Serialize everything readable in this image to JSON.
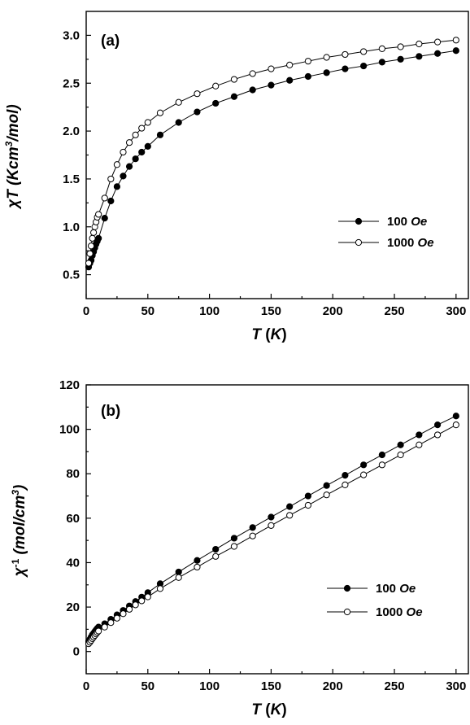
{
  "chart_data": [
    {
      "type": "scatter",
      "panel_label": "(a)",
      "xlabel": "T (K)",
      "ylabel": "χT (Kcm3/mol)",
      "xlim": [
        0,
        310
      ],
      "ylim": [
        0.25,
        3.25
      ],
      "xticks": [
        0,
        50,
        100,
        150,
        200,
        250,
        300
      ],
      "yticks": [
        0.5,
        1.0,
        1.5,
        2.0,
        2.5,
        3.0
      ],
      "yticks_labels": [
        "0.5",
        "1.0",
        "1.5",
        "2.0",
        "2.5",
        "3.0"
      ],
      "legend_position": "center-right",
      "series": [
        {
          "name": "100 Oe",
          "marker": "filled-circle",
          "x": [
            2,
            3,
            4,
            5,
            6,
            7,
            8,
            9,
            10,
            15,
            20,
            25,
            30,
            35,
            40,
            45,
            50,
            60,
            75,
            90,
            105,
            120,
            135,
            150,
            165,
            180,
            195,
            210,
            225,
            240,
            255,
            270,
            285,
            300
          ],
          "y": [
            0.58,
            0.62,
            0.65,
            0.7,
            0.74,
            0.78,
            0.82,
            0.85,
            0.88,
            1.09,
            1.27,
            1.42,
            1.53,
            1.63,
            1.71,
            1.78,
            1.84,
            1.96,
            2.09,
            2.2,
            2.29,
            2.36,
            2.43,
            2.48,
            2.53,
            2.57,
            2.61,
            2.65,
            2.68,
            2.72,
            2.75,
            2.78,
            2.81,
            2.84
          ]
        },
        {
          "name": "1000 Oe",
          "marker": "open-circle",
          "x": [
            2,
            3,
            4,
            5,
            6,
            7,
            8,
            9,
            10,
            15,
            20,
            25,
            30,
            35,
            40,
            45,
            50,
            60,
            75,
            90,
            105,
            120,
            135,
            150,
            165,
            180,
            195,
            210,
            225,
            240,
            255,
            270,
            285,
            300
          ],
          "y": [
            0.62,
            0.72,
            0.8,
            0.88,
            0.94,
            1.0,
            1.05,
            1.1,
            1.13,
            1.3,
            1.5,
            1.65,
            1.78,
            1.88,
            1.96,
            2.03,
            2.09,
            2.19,
            2.3,
            2.39,
            2.47,
            2.54,
            2.6,
            2.65,
            2.69,
            2.73,
            2.77,
            2.8,
            2.83,
            2.86,
            2.88,
            2.91,
            2.93,
            2.95
          ]
        }
      ]
    },
    {
      "type": "scatter",
      "panel_label": "(b)",
      "xlabel": "T (K)",
      "ylabel": "χ-1 (mol/cm3)",
      "xlim": [
        0,
        310
      ],
      "ylim": [
        -10,
        120
      ],
      "xticks": [
        0,
        50,
        100,
        150,
        200,
        250,
        300
      ],
      "yticks": [
        0,
        20,
        40,
        60,
        80,
        100,
        120
      ],
      "yticks_labels": [
        "0",
        "20",
        "40",
        "60",
        "80",
        "100",
        "120"
      ],
      "legend_position": "lower-right",
      "series": [
        {
          "name": "100 Oe",
          "marker": "filled-circle",
          "x": [
            2,
            3,
            4,
            5,
            6,
            7,
            8,
            9,
            10,
            15,
            20,
            25,
            30,
            35,
            40,
            45,
            50,
            60,
            75,
            90,
            105,
            120,
            135,
            150,
            165,
            180,
            195,
            210,
            225,
            240,
            255,
            270,
            285,
            300
          ],
          "y": [
            4.5,
            5.5,
            6.5,
            7.5,
            8.2,
            9.0,
            9.7,
            10.4,
            11.0,
            12.5,
            14.5,
            16.5,
            18.5,
            20.5,
            22.5,
            24.5,
            26.5,
            30.5,
            35.8,
            41.0,
            46.0,
            51.0,
            55.8,
            60.5,
            65.2,
            70.0,
            74.7,
            79.3,
            84.0,
            88.5,
            93.0,
            97.5,
            102.0,
            106.0
          ]
        },
        {
          "name": "1000 Oe",
          "marker": "open-circle",
          "x": [
            2,
            3,
            4,
            5,
            6,
            7,
            8,
            9,
            10,
            15,
            20,
            25,
            30,
            35,
            40,
            45,
            50,
            60,
            75,
            90,
            105,
            120,
            135,
            150,
            165,
            180,
            195,
            210,
            225,
            240,
            255,
            270,
            285,
            300
          ],
          "y": [
            3.5,
            4.2,
            5.0,
            5.8,
            6.5,
            7.2,
            7.9,
            8.6,
            9.2,
            11.0,
            13.0,
            15.0,
            17.0,
            19.0,
            21.0,
            22.8,
            24.6,
            28.3,
            33.3,
            38.0,
            42.8,
            47.3,
            52.0,
            56.7,
            61.3,
            65.8,
            70.5,
            75.0,
            79.5,
            84.0,
            88.5,
            93.0,
            97.5,
            102.0
          ]
        }
      ]
    }
  ]
}
